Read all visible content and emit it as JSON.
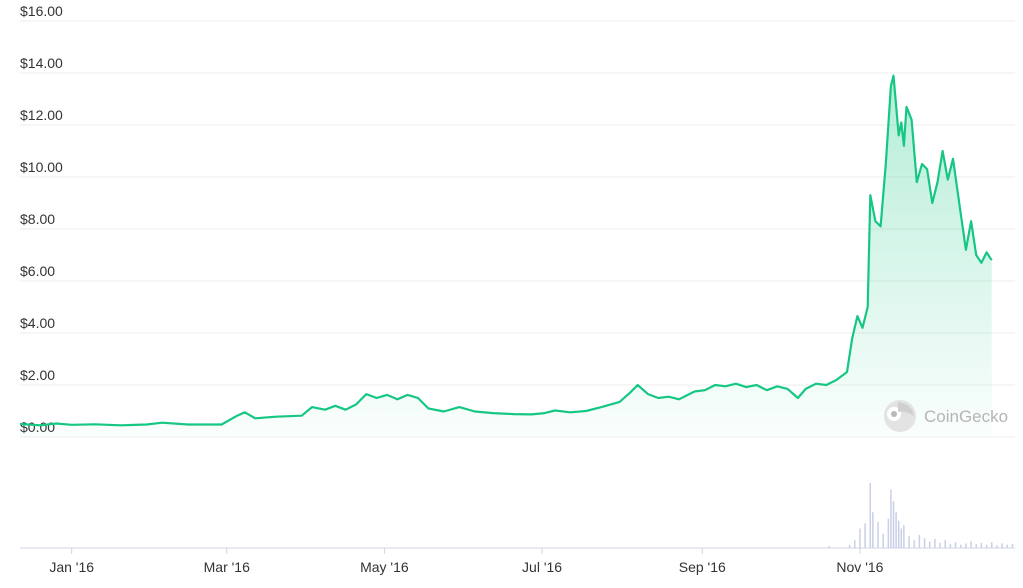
{
  "chart_data": {
    "type": "area",
    "title": "",
    "xlabel": "",
    "ylabel": "",
    "ylim": [
      0,
      16
    ],
    "xlim": [
      "2015-12-12",
      "2016-12-31"
    ],
    "y_ticks": [
      "$0.00",
      "$2.00",
      "$4.00",
      "$6.00",
      "$8.00",
      "$10.00",
      "$12.00",
      "$14.00",
      "$16.00"
    ],
    "x_ticks": [
      {
        "label": "Jan '16",
        "date": "2016-01-01"
      },
      {
        "label": "Mar '16",
        "date": "2016-03-01"
      },
      {
        "label": "May '16",
        "date": "2016-05-01"
      },
      {
        "label": "Jul '16",
        "date": "2016-07-01"
      },
      {
        "label": "Sep '16",
        "date": "2016-09-01"
      },
      {
        "label": "Nov '16",
        "date": "2016-11-01"
      }
    ],
    "grid": true,
    "colors": {
      "line": "#16c784",
      "fill": "#16c784",
      "volume": "#c9cfe6",
      "grid": "#eeeeee"
    },
    "series": [
      {
        "values": [
          [
            "2015-12-12",
            0.5
          ],
          [
            "2015-12-20",
            0.45
          ],
          [
            "2015-12-26",
            0.52
          ],
          [
            "2016-01-01",
            0.47
          ],
          [
            "2016-01-10",
            0.49
          ],
          [
            "2016-01-20",
            0.45
          ],
          [
            "2016-01-30",
            0.48
          ],
          [
            "2016-02-05",
            0.55
          ],
          [
            "2016-02-15",
            0.48
          ],
          [
            "2016-02-28",
            0.48
          ],
          [
            "2016-03-05",
            0.82
          ],
          [
            "2016-03-08",
            0.95
          ],
          [
            "2016-03-12",
            0.72
          ],
          [
            "2016-03-20",
            0.78
          ],
          [
            "2016-03-30",
            0.82
          ],
          [
            "2016-04-03",
            1.15
          ],
          [
            "2016-04-08",
            1.05
          ],
          [
            "2016-04-12",
            1.2
          ],
          [
            "2016-04-16",
            1.05
          ],
          [
            "2016-04-20",
            1.25
          ],
          [
            "2016-04-24",
            1.65
          ],
          [
            "2016-04-28",
            1.5
          ],
          [
            "2016-05-02",
            1.62
          ],
          [
            "2016-05-06",
            1.45
          ],
          [
            "2016-05-10",
            1.62
          ],
          [
            "2016-05-14",
            1.5
          ],
          [
            "2016-05-18",
            1.1
          ],
          [
            "2016-05-24",
            0.98
          ],
          [
            "2016-05-30",
            1.15
          ],
          [
            "2016-06-05",
            0.98
          ],
          [
            "2016-06-12",
            0.92
          ],
          [
            "2016-06-20",
            0.88
          ],
          [
            "2016-06-27",
            0.87
          ],
          [
            "2016-07-02",
            0.92
          ],
          [
            "2016-07-06",
            1.02
          ],
          [
            "2016-07-12",
            0.95
          ],
          [
            "2016-07-18",
            1.0
          ],
          [
            "2016-07-24",
            1.15
          ],
          [
            "2016-07-31",
            1.35
          ],
          [
            "2016-08-04",
            1.7
          ],
          [
            "2016-08-07",
            2.0
          ],
          [
            "2016-08-11",
            1.65
          ],
          [
            "2016-08-15",
            1.5
          ],
          [
            "2016-08-19",
            1.55
          ],
          [
            "2016-08-23",
            1.45
          ],
          [
            "2016-08-29",
            1.75
          ],
          [
            "2016-09-02",
            1.8
          ],
          [
            "2016-09-06",
            2.0
          ],
          [
            "2016-09-10",
            1.95
          ],
          [
            "2016-09-14",
            2.05
          ],
          [
            "2016-09-18",
            1.92
          ],
          [
            "2016-09-22",
            2.0
          ],
          [
            "2016-09-26",
            1.8
          ],
          [
            "2016-09-30",
            1.95
          ],
          [
            "2016-10-04",
            1.85
          ],
          [
            "2016-10-08",
            1.5
          ],
          [
            "2016-10-11",
            1.85
          ],
          [
            "2016-10-15",
            2.05
          ],
          [
            "2016-10-19",
            2.0
          ],
          [
            "2016-10-23",
            2.2
          ],
          [
            "2016-10-27",
            2.5
          ],
          [
            "2016-10-29",
            3.8
          ],
          [
            "2016-10-31",
            4.65
          ],
          [
            "2016-11-02",
            4.2
          ],
          [
            "2016-11-04",
            5.0
          ],
          [
            "2016-11-05",
            9.3
          ],
          [
            "2016-11-07",
            8.3
          ],
          [
            "2016-11-09",
            8.1
          ],
          [
            "2016-11-11",
            10.5
          ],
          [
            "2016-11-13",
            13.5
          ],
          [
            "2016-11-14",
            13.9
          ],
          [
            "2016-11-16",
            11.6
          ],
          [
            "2016-11-17",
            12.1
          ],
          [
            "2016-11-18",
            11.2
          ],
          [
            "2016-11-19",
            12.7
          ],
          [
            "2016-11-21",
            12.2
          ],
          [
            "2016-11-23",
            9.8
          ],
          [
            "2016-11-25",
            10.5
          ],
          [
            "2016-11-27",
            10.3
          ],
          [
            "2016-11-29",
            9.0
          ],
          [
            "2016-12-01",
            9.8
          ],
          [
            "2016-12-03",
            11.0
          ],
          [
            "2016-12-05",
            9.9
          ],
          [
            "2016-12-07",
            10.7
          ],
          [
            "2016-12-10",
            8.6
          ],
          [
            "2016-12-12",
            7.2
          ],
          [
            "2016-12-14",
            8.3
          ],
          [
            "2016-12-16",
            7.0
          ],
          [
            "2016-12-18",
            6.7
          ],
          [
            "2016-12-20",
            7.1
          ],
          [
            "2016-12-22",
            6.8
          ]
        ]
      }
    ],
    "volume": {
      "values": [
        [
          "2016-10-20",
          0.03
        ],
        [
          "2016-10-28",
          0.05
        ],
        [
          "2016-10-30",
          0.12
        ],
        [
          "2016-11-01",
          0.3
        ],
        [
          "2016-11-03",
          0.38
        ],
        [
          "2016-11-05",
          1.0
        ],
        [
          "2016-11-06",
          0.55
        ],
        [
          "2016-11-08",
          0.4
        ],
        [
          "2016-11-10",
          0.22
        ],
        [
          "2016-11-12",
          0.45
        ],
        [
          "2016-11-13",
          0.9
        ],
        [
          "2016-11-14",
          0.72
        ],
        [
          "2016-11-15",
          0.55
        ],
        [
          "2016-11-16",
          0.42
        ],
        [
          "2016-11-17",
          0.3
        ],
        [
          "2016-11-18",
          0.35
        ],
        [
          "2016-11-20",
          0.18
        ],
        [
          "2016-11-22",
          0.12
        ],
        [
          "2016-11-24",
          0.2
        ],
        [
          "2016-11-26",
          0.15
        ],
        [
          "2016-11-28",
          0.1
        ],
        [
          "2016-11-30",
          0.14
        ],
        [
          "2016-12-02",
          0.08
        ],
        [
          "2016-12-04",
          0.12
        ],
        [
          "2016-12-06",
          0.06
        ],
        [
          "2016-12-08",
          0.09
        ],
        [
          "2016-12-10",
          0.05
        ],
        [
          "2016-12-12",
          0.07
        ],
        [
          "2016-12-14",
          0.1
        ],
        [
          "2016-12-16",
          0.06
        ],
        [
          "2016-12-18",
          0.08
        ],
        [
          "2016-12-20",
          0.05
        ],
        [
          "2016-12-22",
          0.09
        ],
        [
          "2016-12-24",
          0.04
        ],
        [
          "2016-12-26",
          0.07
        ],
        [
          "2016-12-28",
          0.05
        ],
        [
          "2016-12-30",
          0.06
        ]
      ]
    },
    "watermark": {
      "text": "CoinGecko",
      "icon": "gecko-logo-icon"
    }
  }
}
